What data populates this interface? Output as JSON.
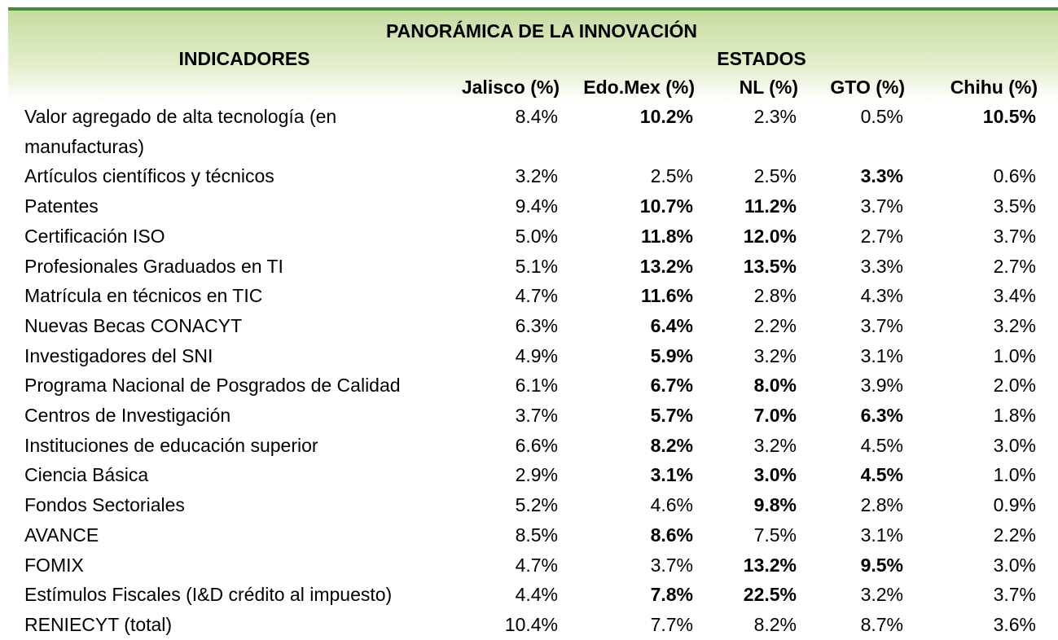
{
  "header": {
    "title": "PANORÁMICA DE LA INNOVACIÓN",
    "indicators_label": "INDICADORES",
    "states_label": "ESTADOS",
    "columns": [
      "Jalisco (%)",
      "Edo.Mex (%)",
      "NL (%)",
      "GTO (%)",
      "Chihu (%)"
    ]
  },
  "table": {
    "rows": [
      {
        "label": "Valor agregado de alta tecnología (en manufacturas)",
        "values": [
          "8.4%",
          "10.2%",
          "2.3%",
          "0.5%",
          "10.5%"
        ],
        "bold": [
          false,
          true,
          false,
          false,
          true
        ]
      },
      {
        "label": "Artículos científicos y técnicos",
        "values": [
          "3.2%",
          "2.5%",
          "2.5%",
          "3.3%",
          "0.6%"
        ],
        "bold": [
          false,
          false,
          false,
          true,
          false
        ]
      },
      {
        "label": "Patentes",
        "values": [
          "9.4%",
          "10.7%",
          "11.2%",
          "3.7%",
          "3.5%"
        ],
        "bold": [
          false,
          true,
          true,
          false,
          false
        ]
      },
      {
        "label": "Certificación ISO",
        "values": [
          "5.0%",
          "11.8%",
          "12.0%",
          "2.7%",
          "3.7%"
        ],
        "bold": [
          false,
          true,
          true,
          false,
          false
        ]
      },
      {
        "label": "Profesionales Graduados en TI",
        "values": [
          "5.1%",
          "13.2%",
          "13.5%",
          "3.3%",
          "2.7%"
        ],
        "bold": [
          false,
          true,
          true,
          false,
          false
        ]
      },
      {
        "label": "Matrícula en técnicos en TIC",
        "values": [
          "4.7%",
          "11.6%",
          "2.8%",
          "4.3%",
          "3.4%"
        ],
        "bold": [
          false,
          true,
          false,
          false,
          false
        ]
      },
      {
        "label": "Nuevas Becas CONACYT",
        "values": [
          "6.3%",
          "6.4%",
          "2.2%",
          "3.7%",
          "3.2%"
        ],
        "bold": [
          false,
          true,
          false,
          false,
          false
        ]
      },
      {
        "label": "Investigadores del SNI",
        "values": [
          "4.9%",
          "5.9%",
          "3.2%",
          "3.1%",
          "1.0%"
        ],
        "bold": [
          false,
          true,
          false,
          false,
          false
        ]
      },
      {
        "label": "Programa Nacional de Posgrados de Calidad",
        "values": [
          "6.1%",
          "6.7%",
          "8.0%",
          "3.9%",
          "2.0%"
        ],
        "bold": [
          false,
          true,
          true,
          false,
          false
        ]
      },
      {
        "label": "Centros de Investigación",
        "values": [
          "3.7%",
          "5.7%",
          "7.0%",
          "6.3%",
          "1.8%"
        ],
        "bold": [
          false,
          true,
          true,
          true,
          false
        ]
      },
      {
        "label": "Instituciones de educación superior",
        "values": [
          "6.6%",
          "8.2%",
          "3.2%",
          "4.5%",
          "3.0%"
        ],
        "bold": [
          false,
          true,
          false,
          false,
          false
        ]
      },
      {
        "label": "Ciencia Básica",
        "values": [
          "2.9%",
          "3.1%",
          "3.0%",
          "4.5%",
          "1.0%"
        ],
        "bold": [
          false,
          true,
          true,
          true,
          false
        ]
      },
      {
        "label": "Fondos Sectoriales",
        "values": [
          "5.2%",
          "4.6%",
          "9.8%",
          "2.8%",
          "0.9%"
        ],
        "bold": [
          false,
          false,
          true,
          false,
          false
        ]
      },
      {
        "label": "AVANCE",
        "values": [
          "8.5%",
          "8.6%",
          "7.5%",
          "3.1%",
          "2.2%"
        ],
        "bold": [
          false,
          true,
          false,
          false,
          false
        ]
      },
      {
        "label": "FOMIX",
        "values": [
          "4.7%",
          "3.7%",
          "13.2%",
          "9.5%",
          "3.0%"
        ],
        "bold": [
          false,
          false,
          true,
          true,
          false
        ]
      },
      {
        "label": "Estímulos Fiscales (I&D crédito al impuesto)",
        "values": [
          "4.4%",
          "7.8%",
          "22.5%",
          "3.2%",
          "3.7%"
        ],
        "bold": [
          false,
          true,
          true,
          false,
          false
        ]
      },
      {
        "label": "RENIECYT (total)",
        "values": [
          "10.4%",
          "7.7%",
          "8.2%",
          "8.7%",
          "3.6%"
        ],
        "bold": [
          false,
          false,
          false,
          false,
          false
        ]
      }
    ]
  }
}
